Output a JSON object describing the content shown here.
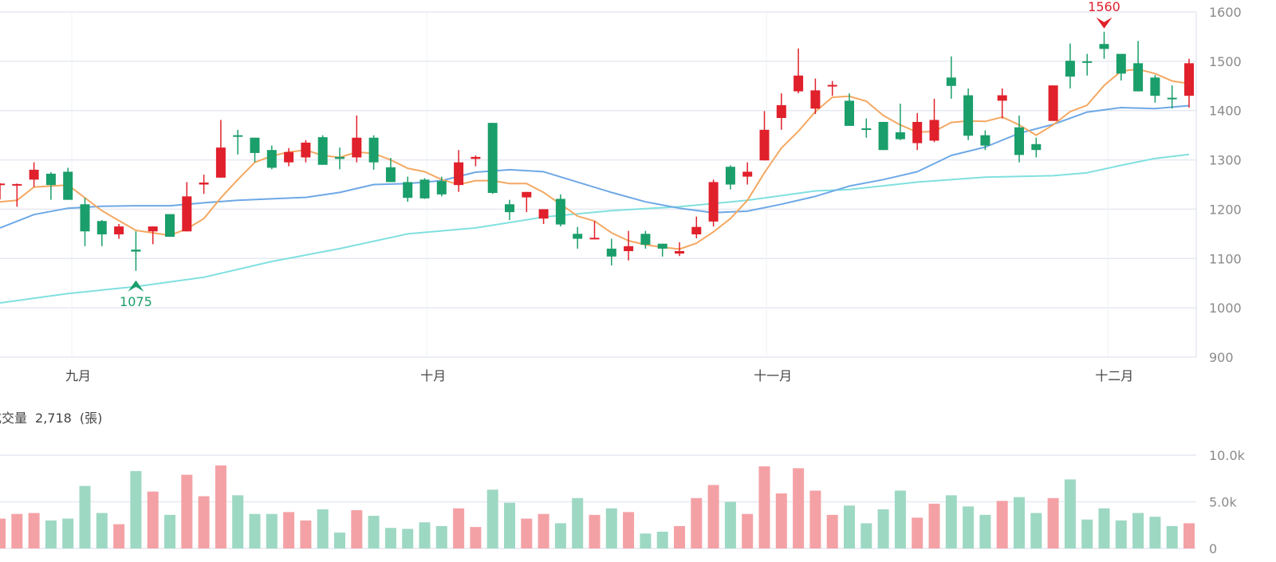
{
  "chart_data": {
    "type": "candlestick",
    "price_axis": {
      "min": 900,
      "max": 1600,
      "ticks": [
        900,
        1000,
        1100,
        1200,
        1300,
        1400,
        1500,
        1600
      ],
      "position": "right"
    },
    "month_labels": [
      {
        "label": "九月",
        "index": 4.6
      },
      {
        "label": "十月",
        "index": 25.5
      },
      {
        "label": "十一月",
        "index": 45.5
      },
      {
        "label": "十二月",
        "index": 65.6
      }
    ],
    "colors": {
      "up": "#e0202b",
      "down": "#1a9e6a",
      "vol_up": "#f4a1a5",
      "vol_down": "#9dd8c3",
      "ma5": "#f4a862",
      "ma20": "#6ea8e6",
      "ma60": "#80e0df",
      "grid": "#e6e9f2"
    },
    "candles_fields": [
      "open",
      "high",
      "low",
      "close",
      "volume_k"
    ],
    "candles": [
      [
        1249,
        1253,
        1220,
        1252,
        3.2
      ],
      [
        1249,
        1252,
        1205,
        1251,
        3.7
      ],
      [
        1260,
        1295,
        1245,
        1280,
        3.8
      ],
      [
        1272,
        1275,
        1219,
        1249,
        3.0
      ],
      [
        1276,
        1284,
        1219,
        1219,
        3.2
      ],
      [
        1210,
        1223,
        1125,
        1155,
        6.7
      ],
      [
        1176,
        1178,
        1125,
        1149,
        3.8
      ],
      [
        1149,
        1170,
        1140,
        1165,
        2.6
      ],
      [
        1118,
        1155,
        1075,
        1114,
        8.3
      ],
      [
        1155,
        1165,
        1129,
        1165,
        6.1
      ],
      [
        1190,
        1190,
        1144,
        1144,
        3.6
      ],
      [
        1155,
        1255,
        1155,
        1226,
        7.9
      ],
      [
        1250,
        1270,
        1231,
        1254,
        5.6
      ],
      [
        1264,
        1381,
        1264,
        1325,
        8.9
      ],
      [
        1350,
        1361,
        1311,
        1347,
        5.7
      ],
      [
        1345,
        1345,
        1295,
        1314,
        3.7
      ],
      [
        1320,
        1329,
        1281,
        1284,
        3.7
      ],
      [
        1295,
        1324,
        1287,
        1316,
        3.9
      ],
      [
        1305,
        1340,
        1295,
        1335,
        3.0
      ],
      [
        1346,
        1350,
        1290,
        1290,
        4.2
      ],
      [
        1306,
        1325,
        1281,
        1302,
        1.7
      ],
      [
        1305,
        1390,
        1295,
        1345,
        4.1
      ],
      [
        1345,
        1350,
        1280,
        1295,
        3.5
      ],
      [
        1285,
        1304,
        1255,
        1255,
        2.2
      ],
      [
        1255,
        1266,
        1215,
        1223,
        2.1
      ],
      [
        1260,
        1263,
        1221,
        1222,
        2.8
      ],
      [
        1257,
        1266,
        1226,
        1230,
        2.4
      ],
      [
        1249,
        1320,
        1235,
        1295,
        4.3
      ],
      [
        1302,
        1309,
        1287,
        1306,
        2.3
      ],
      [
        1375,
        1375,
        1231,
        1233,
        6.3
      ],
      [
        1210,
        1219,
        1178,
        1194,
        4.9
      ],
      [
        1224,
        1235,
        1194,
        1235,
        3.2
      ],
      [
        1181,
        1200,
        1170,
        1200,
        3.7
      ],
      [
        1221,
        1230,
        1165,
        1169,
        2.7
      ],
      [
        1150,
        1164,
        1120,
        1140,
        5.4
      ],
      [
        1140,
        1176,
        1139,
        1142,
        3.6
      ],
      [
        1120,
        1140,
        1086,
        1104,
        4.3
      ],
      [
        1115,
        1156,
        1096,
        1125,
        3.9
      ],
      [
        1150,
        1156,
        1120,
        1128,
        1.6
      ],
      [
        1130,
        1130,
        1104,
        1120,
        1.8
      ],
      [
        1110,
        1133,
        1105,
        1115,
        2.4
      ],
      [
        1149,
        1185,
        1141,
        1164,
        5.4
      ],
      [
        1175,
        1260,
        1165,
        1255,
        6.8
      ],
      [
        1286,
        1289,
        1240,
        1250,
        5.0
      ],
      [
        1266,
        1295,
        1250,
        1276,
        3.7
      ],
      [
        1299,
        1399,
        1299,
        1361,
        8.8
      ],
      [
        1385,
        1435,
        1361,
        1411,
        5.9
      ],
      [
        1439,
        1526,
        1435,
        1471,
        8.6
      ],
      [
        1404,
        1465,
        1393,
        1441,
        6.2
      ],
      [
        1450,
        1460,
        1430,
        1452,
        3.6
      ],
      [
        1420,
        1435,
        1369,
        1369,
        4.6
      ],
      [
        1364,
        1384,
        1345,
        1362,
        2.7
      ],
      [
        1377,
        1377,
        1320,
        1320,
        4.2
      ],
      [
        1356,
        1414,
        1340,
        1342,
        6.2
      ],
      [
        1334,
        1395,
        1320,
        1377,
        3.3
      ],
      [
        1339,
        1424,
        1336,
        1381,
        4.8
      ],
      [
        1467,
        1510,
        1424,
        1450,
        5.7
      ],
      [
        1431,
        1445,
        1340,
        1349,
        4.5
      ],
      [
        1350,
        1360,
        1320,
        1329,
        3.6
      ],
      [
        1420,
        1445,
        1384,
        1431,
        5.1
      ],
      [
        1366,
        1390,
        1295,
        1310,
        5.5
      ],
      [
        1332,
        1345,
        1305,
        1320,
        3.8
      ],
      [
        1379,
        1451,
        1379,
        1451,
        5.4
      ],
      [
        1501,
        1536,
        1445,
        1469,
        7.4
      ],
      [
        1500,
        1515,
        1471,
        1497,
        3.1
      ],
      [
        1535,
        1560,
        1505,
        1525,
        4.3
      ],
      [
        1515,
        1515,
        1461,
        1475,
        3.0
      ],
      [
        1496,
        1541,
        1439,
        1439,
        3.8
      ],
      [
        1467,
        1472,
        1416,
        1430,
        3.4
      ],
      [
        1426,
        1451,
        1404,
        1424,
        2.4
      ],
      [
        1430,
        1505,
        1406,
        1496,
        2.7
      ]
    ],
    "ma5": [
      1215,
      1218,
      1245,
      1247,
      1249,
      1223,
      1197,
      1177,
      1157,
      1152,
      1147,
      1160,
      1181,
      1223,
      1260,
      1295,
      1308,
      1316,
      1320,
      1309,
      1305,
      1316,
      1313,
      1300,
      1283,
      1276,
      1260,
      1250,
      1258,
      1258,
      1252,
      1252,
      1234,
      1210,
      1186,
      1176,
      1152,
      1136,
      1128,
      1123,
      1119,
      1131,
      1154,
      1181,
      1218,
      1274,
      1324,
      1358,
      1398,
      1427,
      1429,
      1419,
      1390,
      1371,
      1356,
      1358,
      1376,
      1379,
      1378,
      1387,
      1371,
      1350,
      1371,
      1398,
      1411,
      1451,
      1480,
      1484,
      1475,
      1460,
      1455
    ],
    "ma20": [
      [
        0,
        1162
      ],
      [
        2,
        1189
      ],
      [
        4,
        1202
      ],
      [
        6,
        1206
      ],
      [
        8,
        1207
      ],
      [
        10,
        1207
      ],
      [
        12,
        1213
      ],
      [
        14,
        1218
      ],
      [
        16,
        1221
      ],
      [
        18,
        1224
      ],
      [
        20,
        1234
      ],
      [
        22,
        1250
      ],
      [
        24,
        1252
      ],
      [
        26,
        1258
      ],
      [
        28,
        1275
      ],
      [
        30,
        1280
      ],
      [
        32,
        1276
      ],
      [
        34,
        1255
      ],
      [
        36,
        1234
      ],
      [
        38,
        1215
      ],
      [
        40,
        1202
      ],
      [
        42,
        1193
      ],
      [
        44,
        1196
      ],
      [
        46,
        1210
      ],
      [
        48,
        1226
      ],
      [
        50,
        1247
      ],
      [
        52,
        1260
      ],
      [
        54,
        1276
      ],
      [
        56,
        1309
      ],
      [
        58,
        1326
      ],
      [
        60,
        1354
      ],
      [
        62,
        1372
      ],
      [
        64,
        1397
      ],
      [
        66,
        1406
      ],
      [
        68,
        1404
      ],
      [
        70,
        1410
      ]
    ],
    "ma60": [
      [
        0,
        1010
      ],
      [
        4,
        1029
      ],
      [
        8,
        1043
      ],
      [
        12,
        1062
      ],
      [
        16,
        1094
      ],
      [
        20,
        1120
      ],
      [
        24,
        1150
      ],
      [
        28,
        1162
      ],
      [
        32,
        1184
      ],
      [
        36,
        1197
      ],
      [
        40,
        1205
      ],
      [
        44,
        1218
      ],
      [
        48,
        1237
      ],
      [
        50,
        1240
      ],
      [
        54,
        1255
      ],
      [
        58,
        1265
      ],
      [
        62,
        1268
      ],
      [
        64,
        1274
      ],
      [
        66,
        1289
      ],
      [
        68,
        1303
      ],
      [
        70,
        1311
      ]
    ],
    "annotations": [
      {
        "type": "max",
        "index": 65,
        "value": 1560,
        "label": "1560"
      },
      {
        "type": "min",
        "index": 8,
        "value": 1075,
        "label": "1075"
      }
    ],
    "volume": {
      "title": "成交量",
      "current_value": "2,718",
      "unit": "(張)",
      "axis_max_k": 10,
      "ticks": [
        {
          "value": 0,
          "label": "0"
        },
        {
          "value": 5,
          "label": "5.0k"
        },
        {
          "value": 10,
          "label": "10.0k"
        }
      ]
    }
  }
}
